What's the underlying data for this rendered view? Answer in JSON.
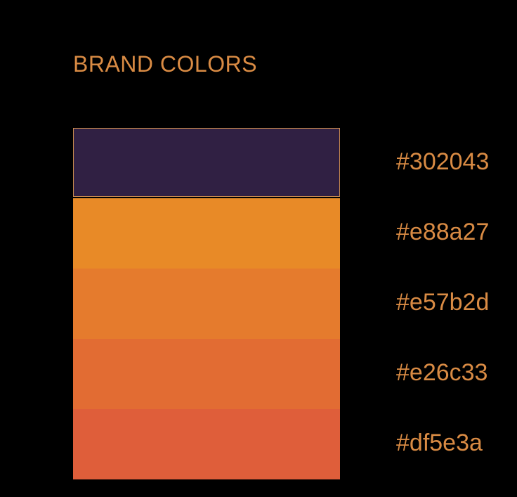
{
  "title": "BRAND COLORS",
  "text_color": "#d98b44",
  "swatches": [
    {
      "label": "#302043",
      "color": "#302043"
    },
    {
      "label": "#e88a27",
      "color": "#e88a27"
    },
    {
      "label": "#e57b2d",
      "color": "#e57b2d"
    },
    {
      "label": "#e26c33",
      "color": "#e26c33"
    },
    {
      "label": "#df5e3a",
      "color": "#df5e3a"
    }
  ]
}
